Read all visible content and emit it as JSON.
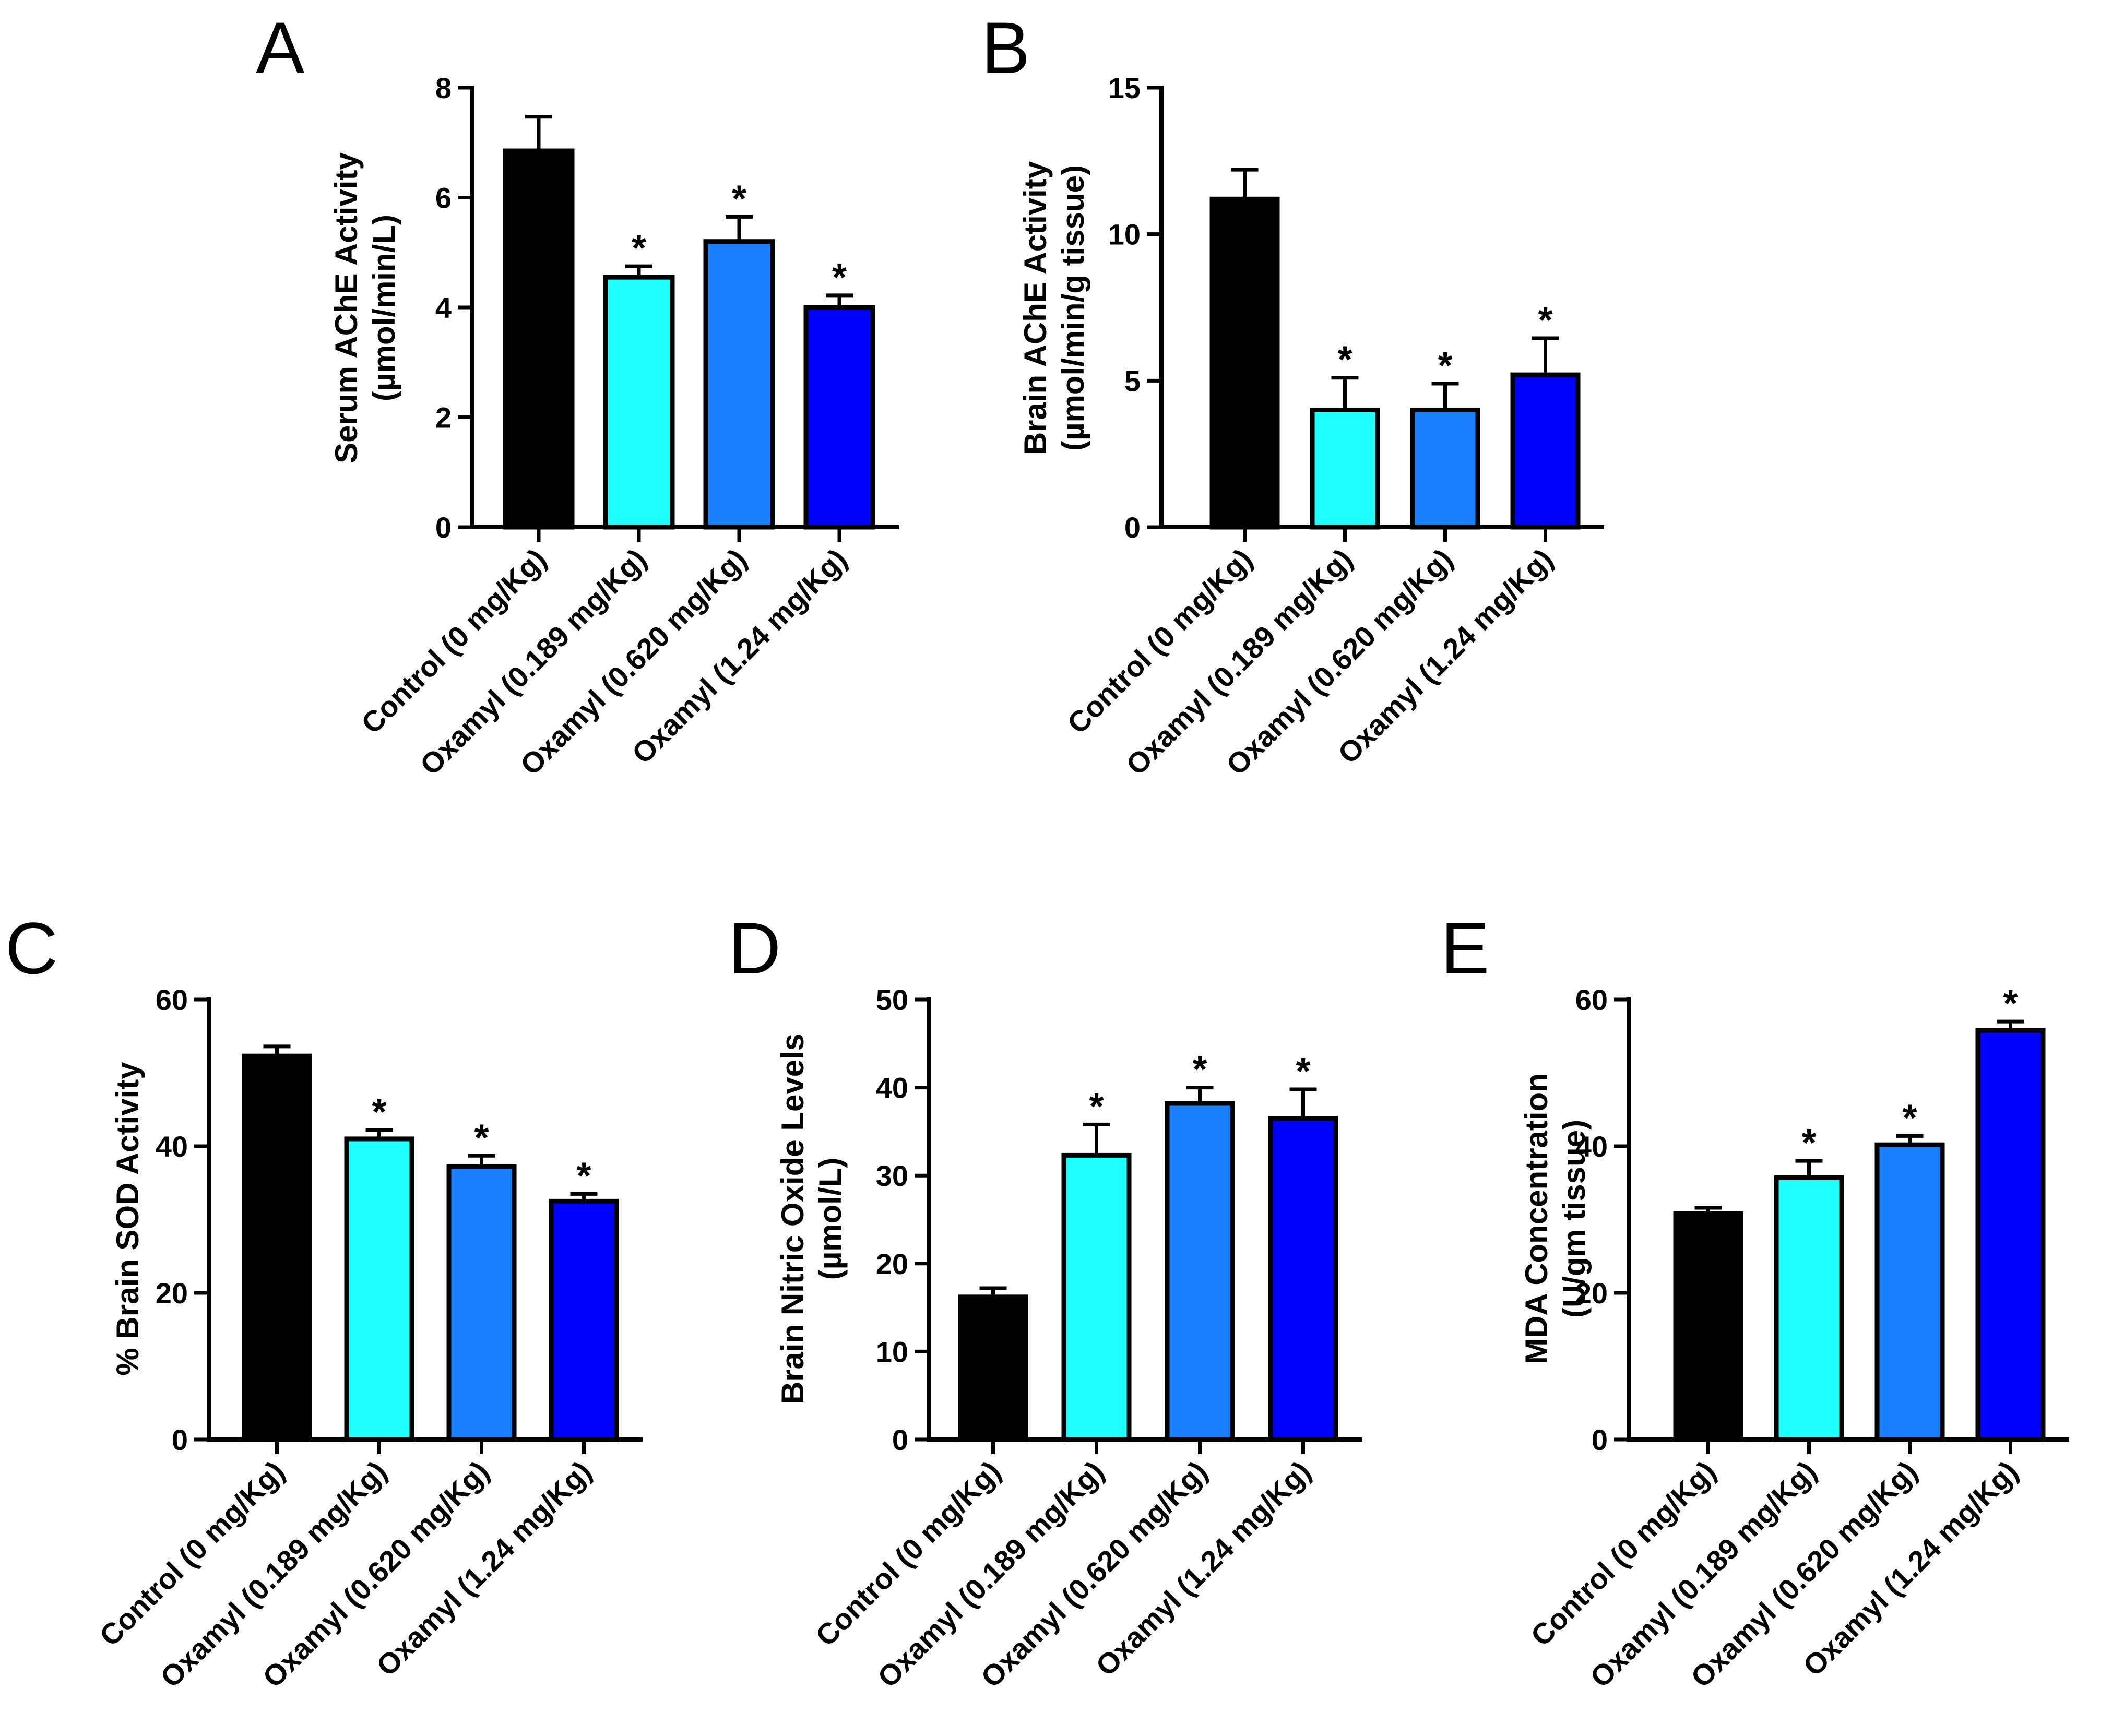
{
  "chart_data": [
    {
      "panel": "A",
      "type": "bar",
      "ylabel": [
        "Serum AChE Activity",
        "(µmol/min/L)"
      ],
      "ylim": [
        0,
        8
      ],
      "yticks": [
        "0",
        "2",
        "4",
        "6",
        "8"
      ],
      "categories": [
        "Control (0 mg/Kg)",
        "Oxamyl (0.189 mg/Kg)",
        "Oxamyl (0.620 mg/Kg)",
        "Oxamyl (1.24 mg/Kg)"
      ],
      "values": [
        6.85,
        4.55,
        5.2,
        4.0
      ],
      "errors": [
        0.62,
        0.2,
        0.45,
        0.22
      ],
      "significance": [
        "",
        "*",
        "*",
        "*"
      ],
      "colors": [
        "#000000",
        "#1effff",
        "#1a80ff",
        "#0000ff"
      ]
    },
    {
      "panel": "B",
      "type": "bar",
      "ylabel": [
        "Brain AChE Activity",
        "(µmol/min/g tissue)"
      ],
      "ylim": [
        0,
        15
      ],
      "yticks": [
        "0",
        "5",
        "10",
        "15"
      ],
      "categories": [
        "Control (0 mg/Kg)",
        "Oxamyl (0.189 mg/Kg)",
        "Oxamyl (0.620 mg/Kg)",
        "Oxamyl (1.24 mg/Kg)"
      ],
      "values": [
        11.2,
        4.0,
        4.0,
        5.2
      ],
      "errors": [
        1.0,
        1.1,
        0.9,
        1.25
      ],
      "significance": [
        "",
        "*",
        "*",
        "*"
      ],
      "colors": [
        "#000000",
        "#1effff",
        "#1a80ff",
        "#0000ff"
      ]
    },
    {
      "panel": "C",
      "type": "bar",
      "ylabel": [
        "% Brain SOD Activity"
      ],
      "ylim": [
        0,
        60
      ],
      "yticks": [
        "0",
        "20",
        "40",
        "60"
      ],
      "categories": [
        "Control (0 mg/Kg)",
        "Oxamyl (0.189 mg/Kg)",
        "Oxamyl (0.620 mg/Kg)",
        "Oxamyl (1.24 mg/Kg)"
      ],
      "values": [
        52.3,
        41.0,
        37.2,
        32.5
      ],
      "errors": [
        1.3,
        1.2,
        1.5,
        1.0
      ],
      "significance": [
        "",
        "*",
        "*",
        "*"
      ],
      "colors": [
        "#000000",
        "#1effff",
        "#1a80ff",
        "#0000ff"
      ]
    },
    {
      "panel": "D",
      "type": "bar",
      "ylabel": [
        "Brain Nitric Oxide Levels",
        "(µmol/L)"
      ],
      "ylim": [
        0,
        50
      ],
      "yticks": [
        "0",
        "10",
        "20",
        "30",
        "40",
        "50"
      ],
      "categories": [
        "Control (0 mg/Kg)",
        "Oxamyl (0.189 mg/Kg)",
        "Oxamyl (0.620 mg/Kg)",
        "Oxamyl (1.24 mg/Kg)"
      ],
      "values": [
        16.2,
        32.3,
        38.2,
        36.5
      ],
      "errors": [
        1.0,
        3.5,
        1.8,
        3.3
      ],
      "significance": [
        "",
        "*",
        "*",
        "*"
      ],
      "colors": [
        "#000000",
        "#1effff",
        "#1a80ff",
        "#0000ff"
      ]
    },
    {
      "panel": "E",
      "type": "bar",
      "ylabel": [
        "MDA Concentration",
        "(U/gm tissue)"
      ],
      "ylim": [
        0,
        60
      ],
      "yticks": [
        "0",
        "20",
        "40",
        "60"
      ],
      "categories": [
        "Control (0 mg/Kg)",
        "Oxamyl (0.189 mg/Kg)",
        "Oxamyl (0.620 mg/Kg)",
        "Oxamyl (1.24 mg/Kg)"
      ],
      "values": [
        30.8,
        35.7,
        40.2,
        55.8
      ],
      "errors": [
        0.8,
        2.3,
        1.2,
        1.2
      ],
      "significance": [
        "",
        "*",
        "*",
        "*"
      ],
      "colors": [
        "#000000",
        "#1effff",
        "#1a80ff",
        "#0000ff"
      ]
    }
  ]
}
